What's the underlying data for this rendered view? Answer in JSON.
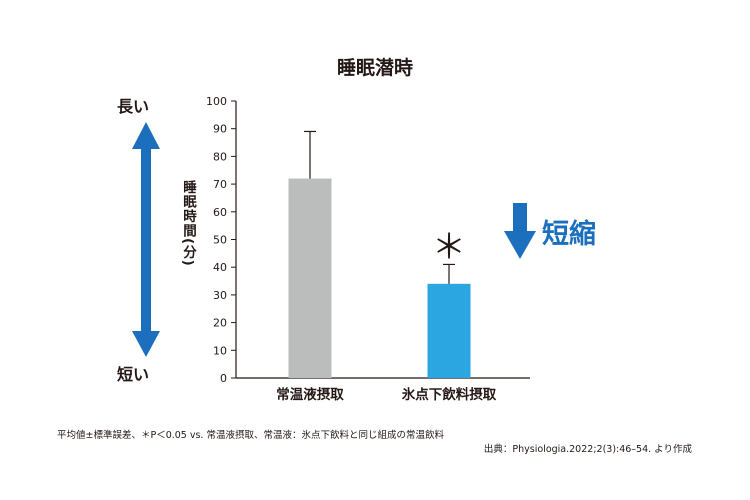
{
  "chart_data": {
    "type": "bar",
    "title": "睡眠潜時",
    "ylabel": "睡眠時間(分)",
    "xlabel": "",
    "categories": [
      "常温液摂取",
      "氷点下飲料摂取"
    ],
    "values": [
      72,
      34
    ],
    "error_upper": [
      89,
      41
    ],
    "bar_colors": [
      "#bbbcbc",
      "#2ca6e0"
    ],
    "ylim": [
      0,
      100
    ],
    "yticks": [
      "0",
      "10",
      "20",
      "30",
      "40",
      "50",
      "60",
      "70",
      "80",
      "90",
      "100"
    ],
    "grid": false,
    "significance_marker": "＊",
    "annotations": {
      "long": "長い",
      "short": "短い",
      "shorten": "短縮"
    }
  },
  "footnote": "平均値±標準誤差、＊P＜0.05 vs. 常温液摂取、常温液：氷点下飲料と同じ組成の常温飲料",
  "source": "出典：Physiologia.2022;2(3):46–54. より作成",
  "colors": {
    "arrow": "#1c6fbd",
    "shorten_text": "#1c6fbd",
    "axis": "#231815"
  }
}
